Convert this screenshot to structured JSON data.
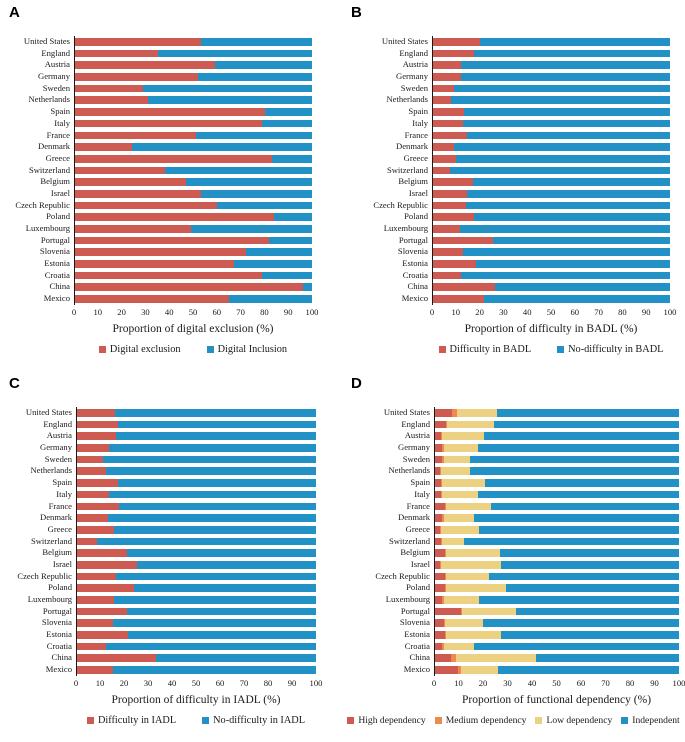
{
  "chart_data": [
    {
      "panel": "A",
      "type": "bar",
      "orientation": "horizontal",
      "stacked": true,
      "xlabel": "Proportion of digital exclusion (%)",
      "xlim": [
        0,
        100
      ],
      "xticks": [
        0,
        10,
        20,
        30,
        40,
        50,
        60,
        70,
        80,
        90,
        100
      ],
      "legend_position": "bottom",
      "categories": [
        "United States",
        "England",
        "Austria",
        "Germany",
        "Sweden",
        "Netherlands",
        "Spain",
        "Italy",
        "France",
        "Denmark",
        "Greece",
        "Switzerland",
        "Belgium",
        "Israel",
        "Czech Republic",
        "Poland",
        "Luxembourg",
        "Portugal",
        "Slovenia",
        "Estonia",
        "Croatia",
        "China",
        "Mexico"
      ],
      "series": [
        {
          "name": "Digital exclusion",
          "color": "#CD5B52",
          "values": [
            53,
            35,
            59,
            52,
            28.5,
            31,
            80,
            79,
            51,
            24,
            83,
            38,
            47,
            53,
            60,
            84,
            49,
            82,
            72,
            67,
            79,
            96,
            65
          ]
        },
        {
          "name": "Digital Inclusion",
          "color": "#2191C6",
          "values": [
            47,
            65,
            41,
            48,
            71.5,
            69,
            20,
            21,
            49,
            76,
            17,
            62,
            53,
            47,
            40,
            16,
            51,
            18,
            28,
            33,
            21,
            4,
            35
          ]
        }
      ]
    },
    {
      "panel": "B",
      "type": "bar",
      "orientation": "horizontal",
      "stacked": true,
      "xlabel": "Proportion of difficulty in BADL (%)",
      "xlim": [
        0,
        100
      ],
      "xticks": [
        0,
        10,
        20,
        30,
        40,
        50,
        60,
        70,
        80,
        90,
        100
      ],
      "legend_position": "bottom",
      "categories": [
        "United States",
        "England",
        "Austria",
        "Germany",
        "Sweden",
        "Netherlands",
        "Spain",
        "Italy",
        "France",
        "Denmark",
        "Greece",
        "Switzerland",
        "Belgium",
        "Israel",
        "Czech Republic",
        "Poland",
        "Luxembourg",
        "Portugal",
        "Slovenia",
        "Estonia",
        "Croatia",
        "China",
        "Mexico"
      ],
      "series": [
        {
          "name": "Difficulty in BADL",
          "color": "#CD5B52",
          "values": [
            20,
            17.5,
            12,
            12,
            9,
            7.5,
            13,
            12.5,
            14.5,
            9,
            9.5,
            7,
            17,
            14.5,
            14,
            17.5,
            11.5,
            25.5,
            12.5,
            18,
            12,
            26,
            21.5
          ]
        },
        {
          "name": "No-difficulty in BADL",
          "color": "#2191C6",
          "values": [
            80,
            82.5,
            88,
            88,
            91,
            92.5,
            87,
            87.5,
            85.5,
            91,
            90.5,
            93,
            83,
            85.5,
            86,
            82.5,
            88.5,
            74.5,
            87.5,
            82,
            88,
            74,
            78.5
          ]
        }
      ]
    },
    {
      "panel": "C",
      "type": "bar",
      "orientation": "horizontal",
      "stacked": true,
      "xlabel": "Proportion of difficulty in IADL (%)",
      "xlim": [
        0,
        100
      ],
      "xticks": [
        0,
        10,
        20,
        30,
        40,
        50,
        60,
        70,
        80,
        90,
        100
      ],
      "legend_position": "bottom",
      "categories": [
        "United States",
        "England",
        "Austria",
        "Germany",
        "Sweden",
        "Netherlands",
        "Spain",
        "Italy",
        "France",
        "Denmark",
        "Greece",
        "Switzerland",
        "Belgium",
        "Israel",
        "Czech Republic",
        "Poland",
        "Luxembourg",
        "Portugal",
        "Slovenia",
        "Estonia",
        "Croatia",
        "China",
        "Mexico"
      ],
      "series": [
        {
          "name": "Difficulty in IADL",
          "color": "#CD5B52",
          "values": [
            16,
            17,
            16.5,
            13.5,
            11,
            12,
            17,
            13.5,
            17.5,
            13,
            15.5,
            8.5,
            21,
            25,
            16.5,
            24,
            15.5,
            21,
            15,
            21.5,
            12,
            33,
            15
          ]
        },
        {
          "name": "No-difficulty in IADL",
          "color": "#2191C6",
          "values": [
            84,
            83,
            83.5,
            86.5,
            89,
            88,
            83,
            86.5,
            82.5,
            87,
            84.5,
            91.5,
            79,
            75,
            83.5,
            76,
            84.5,
            79,
            85,
            78.5,
            88,
            67,
            85
          ]
        }
      ]
    },
    {
      "panel": "D",
      "type": "bar",
      "orientation": "horizontal",
      "stacked": true,
      "xlabel": "Proportion of functional dependency (%)",
      "xlim": [
        0,
        100
      ],
      "xticks": [
        0,
        10,
        20,
        30,
        40,
        50,
        60,
        70,
        80,
        90,
        100
      ],
      "legend_position": "bottom",
      "categories": [
        "United States",
        "England",
        "Austria",
        "Germany",
        "Sweden",
        "Netherlands",
        "Spain",
        "Italy",
        "France",
        "Denmark",
        "Greece",
        "Switzerland",
        "Belgium",
        "Israel",
        "Czech Republic",
        "Poland",
        "Luxembourg",
        "Portugal",
        "Slovenia",
        "Estonia",
        "Croatia",
        "China",
        "Mexico"
      ],
      "series": [
        {
          "name": "High dependency",
          "color": "#CD5B52",
          "values": [
            7,
            4.5,
            2.5,
            3,
            3,
            2,
            2.5,
            2.5,
            4,
            3,
            2,
            2.5,
            4,
            2,
            4,
            4,
            3,
            10.5,
            3.5,
            4,
            3,
            6.5,
            9.5
          ]
        },
        {
          "name": "Medium dependency",
          "color": "#ED8A4F",
          "values": [
            2,
            0.5,
            0.5,
            0.5,
            0.5,
            0.5,
            0.5,
            0.5,
            0.5,
            0.5,
            0.5,
            0.5,
            0.5,
            0.5,
            0.5,
            0.5,
            0.5,
            0.5,
            0.5,
            0.5,
            0.5,
            2,
            1
          ]
        },
        {
          "name": "Low dependency",
          "color": "#ECD183",
          "values": [
            16.5,
            19,
            17,
            14,
            11,
            12,
            17.5,
            14.5,
            18.5,
            12.5,
            15.5,
            9,
            22,
            24.5,
            17.5,
            24.5,
            14.5,
            22,
            15.5,
            22.5,
            12.5,
            33,
            15.5
          ]
        },
        {
          "name": "Independent",
          "color": "#2191C6",
          "values": [
            74.5,
            76,
            80,
            82.5,
            85.5,
            85.5,
            79.5,
            82.5,
            77,
            84,
            82,
            88,
            73.5,
            73,
            78,
            71,
            82,
            67,
            80.5,
            73,
            84,
            58.5,
            74
          ]
        }
      ]
    }
  ]
}
